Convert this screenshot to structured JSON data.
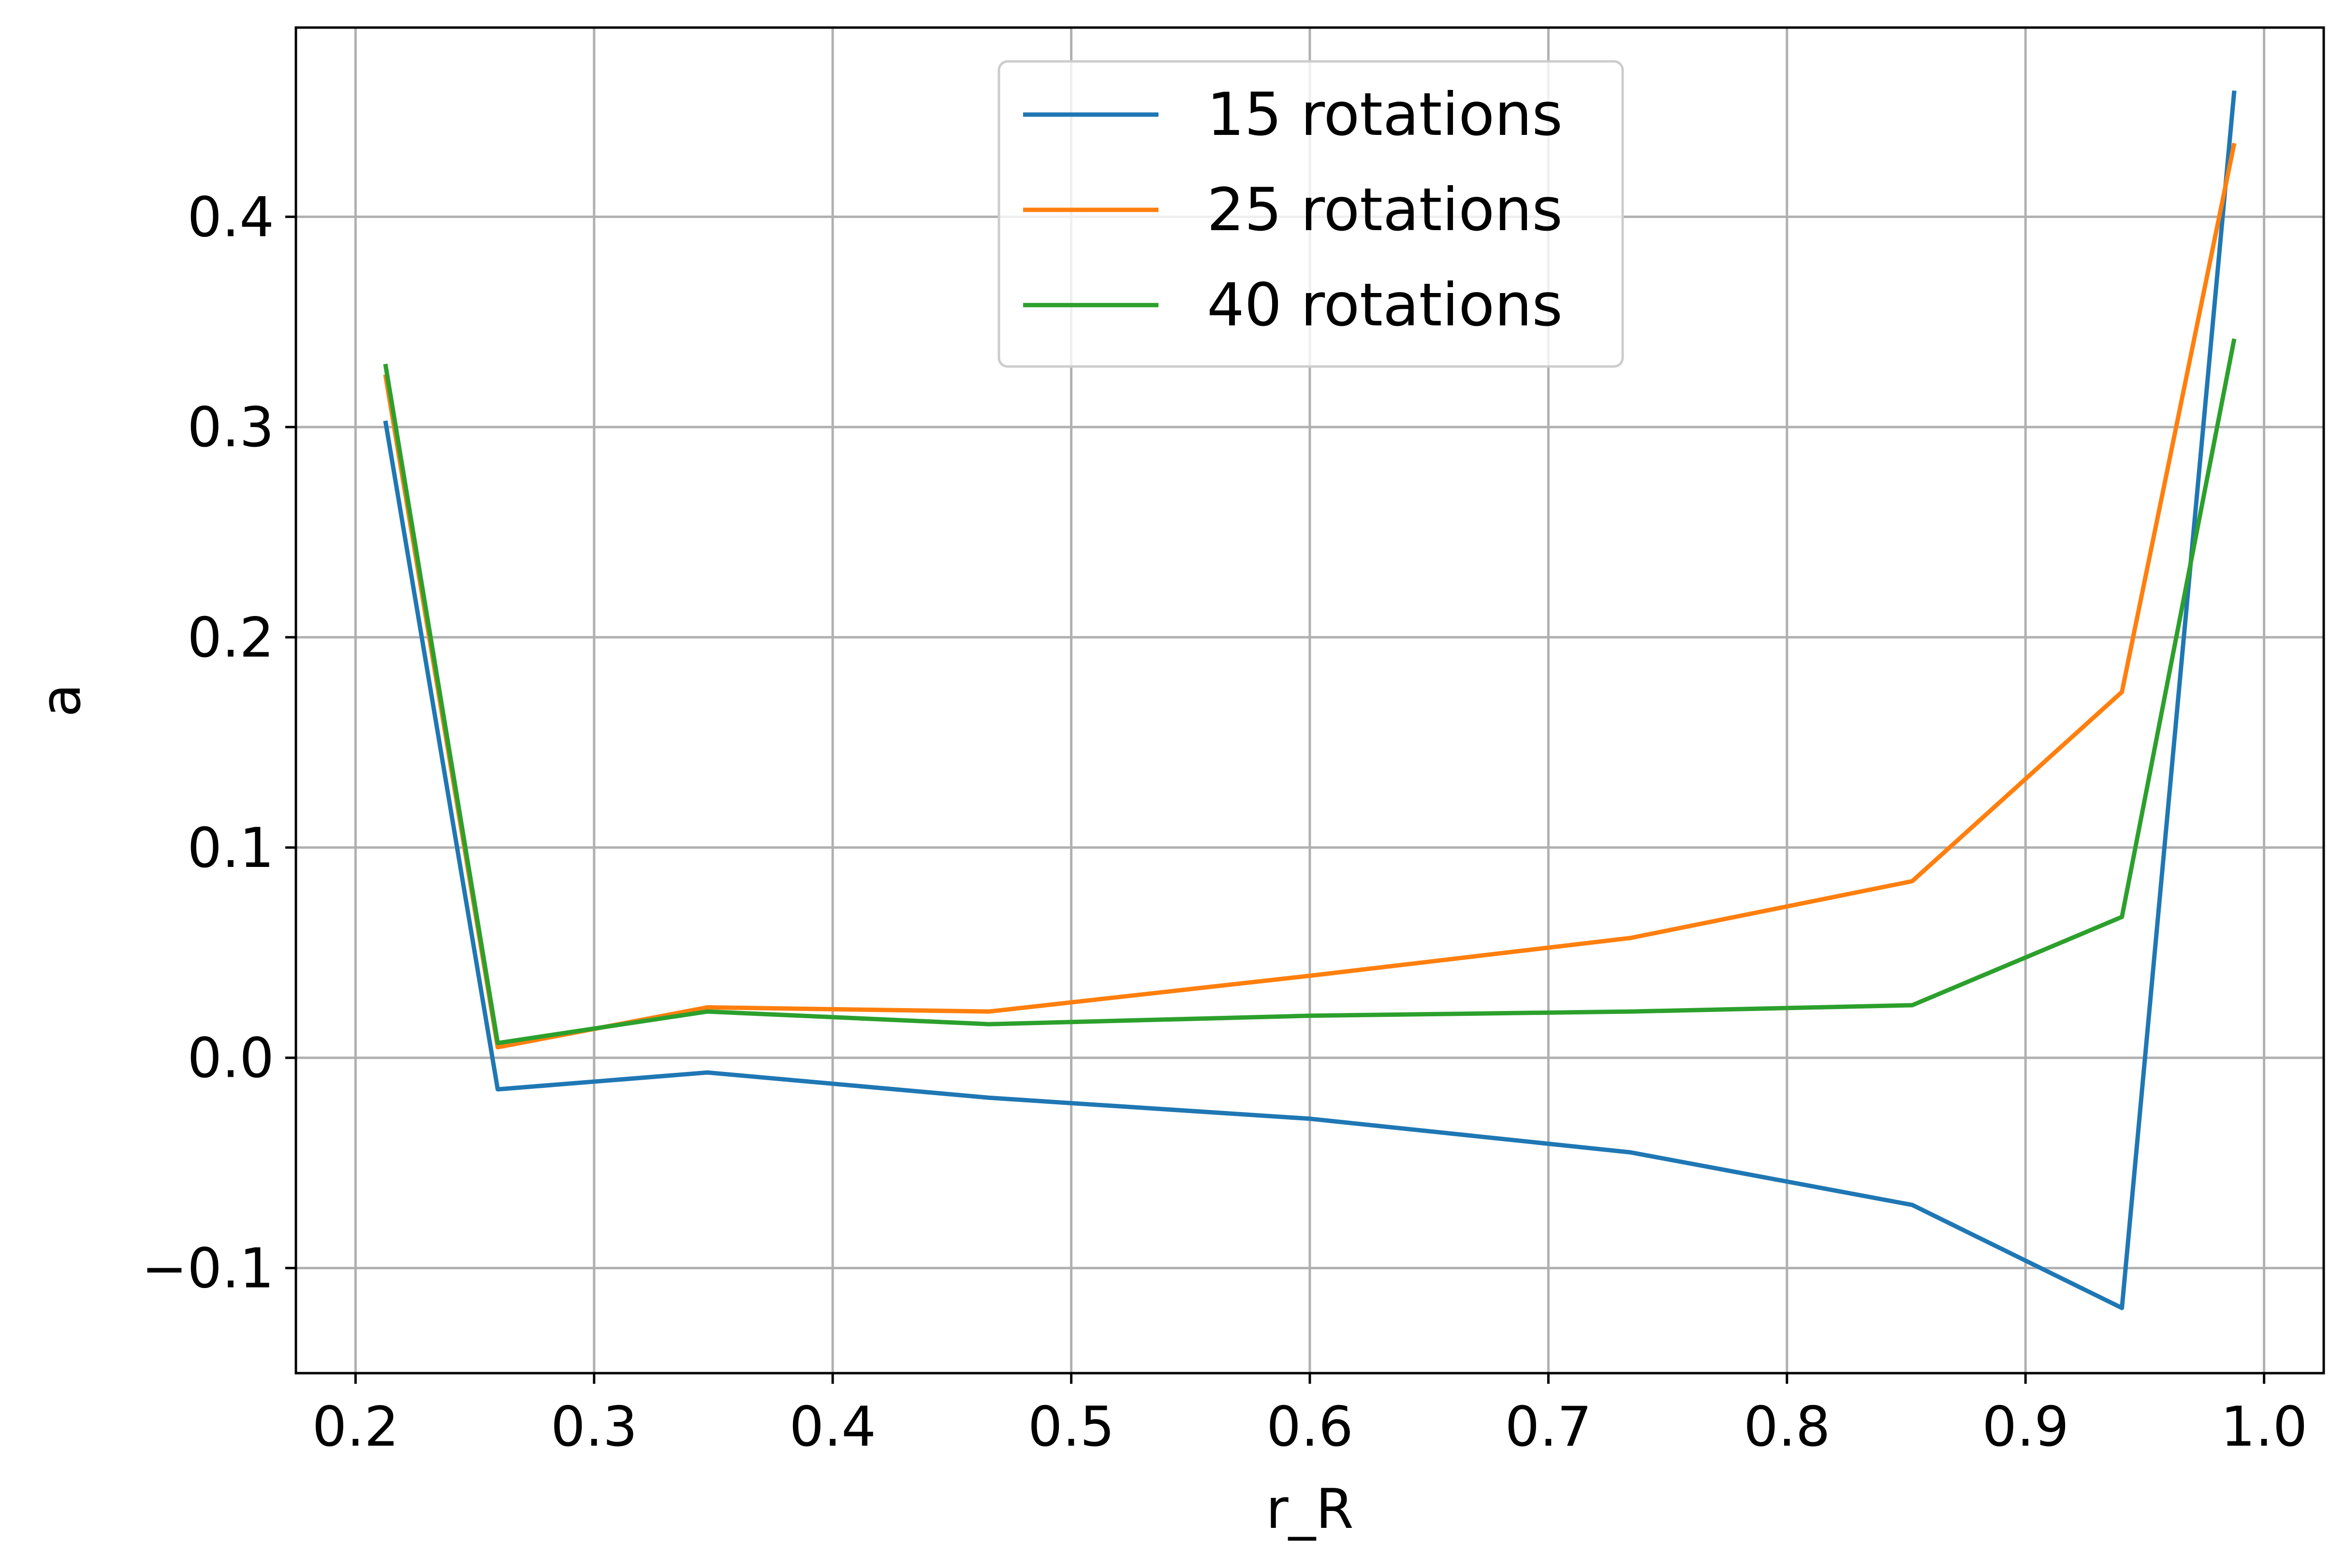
{
  "chart_data": {
    "type": "line",
    "title": "",
    "xlabel": "r_R",
    "ylabel": "a",
    "xlim": [
      0.175,
      1.025
    ],
    "ylim": [
      -0.15,
      0.49
    ],
    "xticks": [
      0.2,
      0.3,
      0.4,
      0.5,
      0.6,
      0.7,
      0.8,
      0.9,
      1.0
    ],
    "xtick_labels": [
      "0.2",
      "0.3",
      "0.4",
      "0.5",
      "0.6",
      "0.7",
      "0.8",
      "0.9",
      "1.0"
    ],
    "yticks": [
      -0.1,
      0.0,
      0.1,
      0.2,
      0.3,
      0.4
    ],
    "ytick_labels": [
      "−0.1",
      "0.0",
      "0.1",
      "0.2",
      "0.3",
      "0.4"
    ],
    "grid": true,
    "legend_position": "top-center",
    "x": [
      0.2125,
      0.2596,
      0.3475,
      0.4655,
      0.6,
      0.7345,
      0.8525,
      0.9404,
      0.9875
    ],
    "series": [
      {
        "name": "15 rotations",
        "color": "#1f77b4",
        "values": [
          0.303,
          -0.015,
          -0.007,
          -0.019,
          -0.029,
          -0.045,
          -0.07,
          -0.119,
          0.46
        ]
      },
      {
        "name": "25 rotations",
        "color": "#ff7f0e",
        "values": [
          0.325,
          0.005,
          0.024,
          0.022,
          0.039,
          0.057,
          0.084,
          0.174,
          0.435
        ]
      },
      {
        "name": "40 rotations",
        "color": "#2ca02c",
        "values": [
          0.33,
          0.007,
          0.022,
          0.016,
          0.02,
          0.022,
          0.025,
          0.067,
          0.342
        ]
      }
    ]
  }
}
